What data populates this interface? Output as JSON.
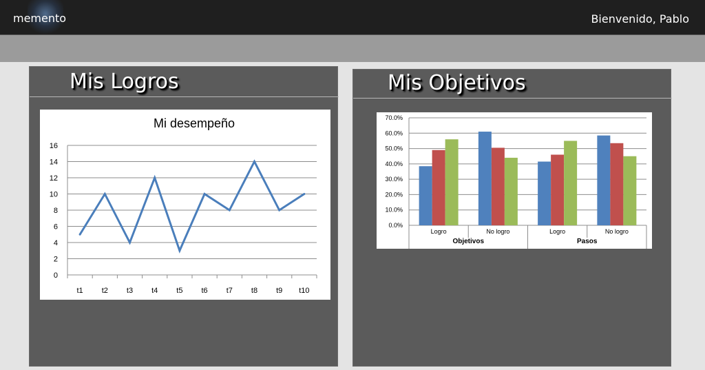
{
  "header": {
    "brand": "memento",
    "welcome": "Bienvenido, Pablo"
  },
  "panels": {
    "logros": {
      "title": "Mis Logros"
    },
    "objetivos": {
      "title": "Mis Objetivos"
    }
  },
  "chart_data": [
    {
      "type": "line",
      "title": "Mi desempeño",
      "categories": [
        "t1",
        "t2",
        "t3",
        "t4",
        "t5",
        "t6",
        "t7",
        "t8",
        "t9",
        "t10"
      ],
      "series": [
        {
          "values": [
            5,
            10,
            4,
            12,
            3,
            10,
            8,
            14,
            8,
            10
          ],
          "color": "#4a7ebb"
        }
      ],
      "ylim": [
        0,
        16
      ],
      "yticks": [
        "0",
        "2",
        "4",
        "6",
        "8",
        "10",
        "12",
        "14",
        "16"
      ],
      "grid": true
    },
    {
      "type": "bar",
      "groups": [
        {
          "label": "Objetivos",
          "categories": [
            "Logro",
            "No logro"
          ]
        },
        {
          "label": "Pasos",
          "categories": [
            "Logro",
            "No logro"
          ]
        }
      ],
      "categories": [
        "Logro",
        "No logro",
        "Logro",
        "No logro"
      ],
      "series": [
        {
          "values": [
            0.385,
            0.61,
            0.415,
            0.585
          ],
          "color": "#4f81bd"
        },
        {
          "values": [
            0.49,
            0.505,
            0.46,
            0.535
          ],
          "color": "#c0504d"
        },
        {
          "values": [
            0.56,
            0.44,
            0.55,
            0.45
          ],
          "color": "#9bbb59"
        }
      ],
      "ylim": [
        0,
        0.7
      ],
      "yticks": [
        "0.0%",
        "10.0%",
        "20.0%",
        "30.0%",
        "40.0%",
        "50.0%",
        "60.0%",
        "70.0%"
      ],
      "grid": true
    }
  ]
}
